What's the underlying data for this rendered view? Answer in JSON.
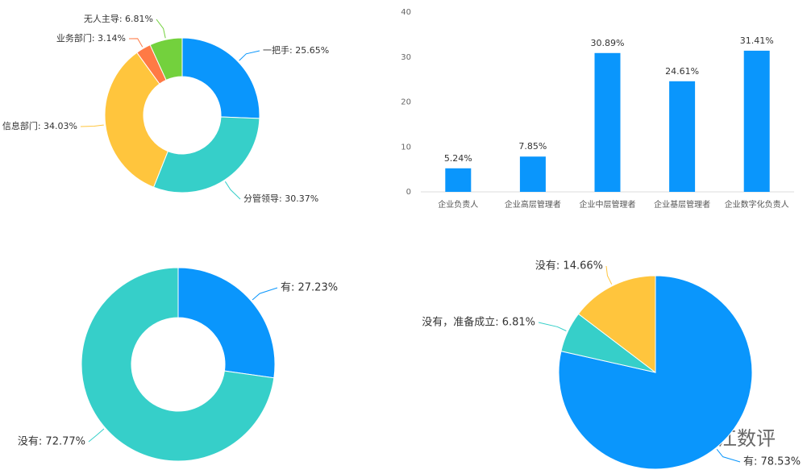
{
  "chart_data": [
    {
      "type": "donut",
      "values": [
        25.65,
        30.37,
        34.03,
        3.14,
        6.81
      ],
      "value_labels": [
        "一把手: 25.65%",
        "分管领导: 30.37%",
        "信息部门: 34.03%",
        "业务部门: 3.14%",
        "无人主导: 6.81%"
      ],
      "colors": [
        "#0a96fc",
        "#36cfc9",
        "#ffc53d",
        "#ff7a45",
        "#73d13d"
      ]
    },
    {
      "type": "bar",
      "categories": [
        "企业负责人",
        "企业高层管理者",
        "企业中层管理者",
        "企业基层管理者",
        "企业数字化负责人"
      ],
      "values": [
        5.24,
        7.85,
        30.89,
        24.61,
        31.41
      ],
      "value_labels": [
        "5.24%",
        "7.85%",
        "30.89%",
        "24.61%",
        "31.41%"
      ],
      "color": "#0a96fc",
      "ylim": [
        0,
        40
      ],
      "yticks": [
        0,
        10,
        20,
        30,
        40
      ]
    },
    {
      "type": "donut",
      "values": [
        27.23,
        72.77
      ],
      "value_labels": [
        "有: 27.23%",
        "没有: 72.77%"
      ],
      "colors": [
        "#0a96fc",
        "#36cfc9"
      ]
    },
    {
      "type": "pie",
      "values": [
        78.53,
        6.81,
        14.66
      ],
      "value_labels": [
        "有: 78.53%",
        "没有，准备成立: 6.81%",
        "没有: 14.66%"
      ],
      "colors": [
        "#0a96fc",
        "#36cfc9",
        "#ffc53d"
      ]
    }
  ],
  "watermark": "湘江数评"
}
